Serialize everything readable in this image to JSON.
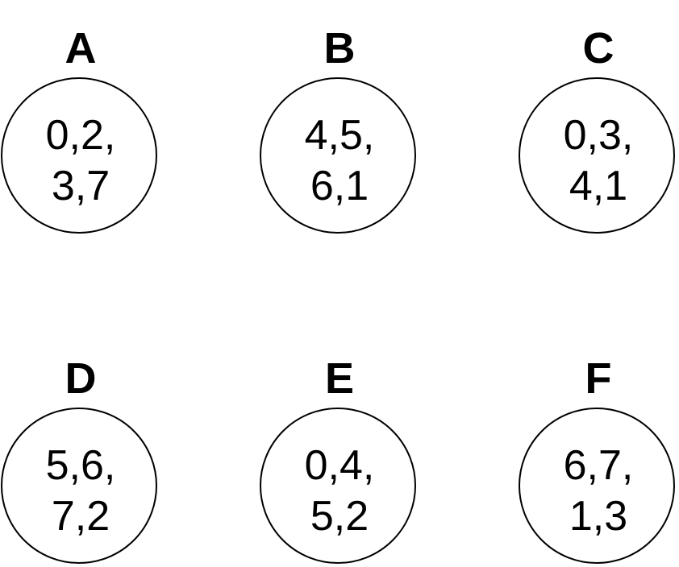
{
  "nodes": [
    {
      "letter": "A",
      "line1": "0,2,",
      "line2": "3,7"
    },
    {
      "letter": "B",
      "line1": "4,5,",
      "line2": "6,1"
    },
    {
      "letter": "C",
      "line1": "0,3,",
      "line2": "4,1"
    },
    {
      "letter": "D",
      "line1": "5,6,",
      "line2": "7,2"
    },
    {
      "letter": "E",
      "line1": "0,4,",
      "line2": "5,2"
    },
    {
      "letter": "F",
      "line1": "6,7,",
      "line2": "1,3"
    }
  ]
}
